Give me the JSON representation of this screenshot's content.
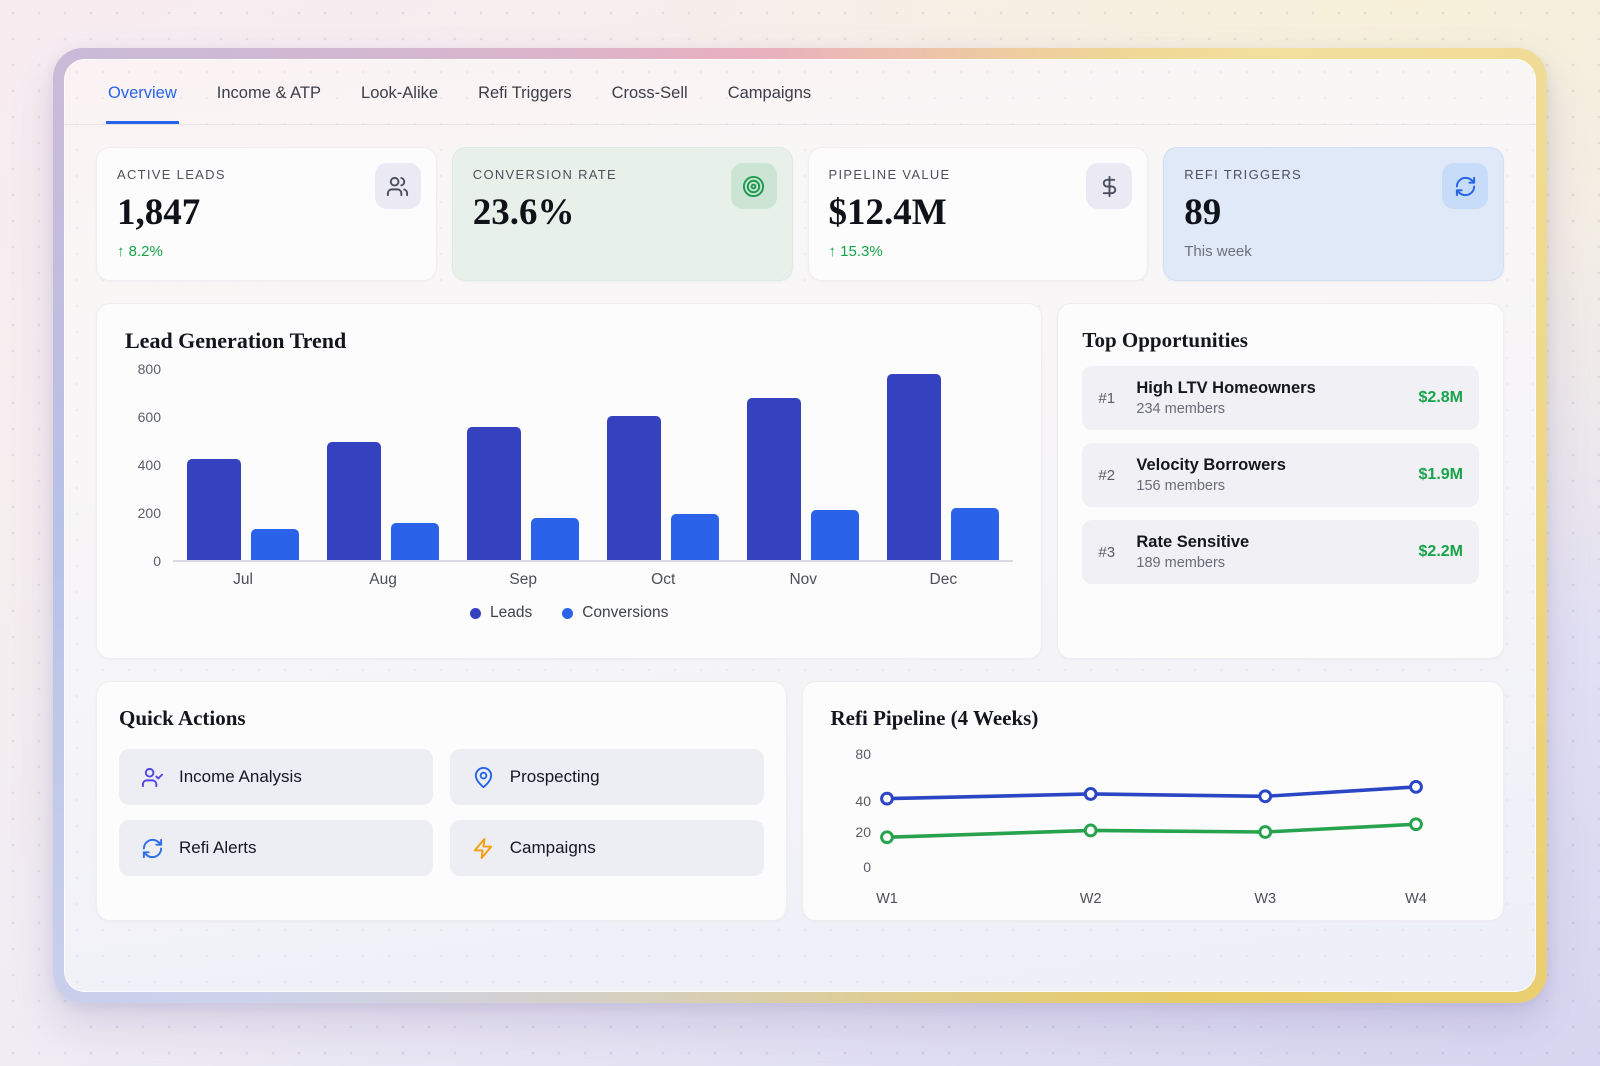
{
  "colors": {
    "accent_blue": "#2563eb",
    "leads_bar": "#3542c0",
    "conversions_bar": "#2a62ea",
    "positive_green": "#17a34a",
    "line_blue": "#2b46c4",
    "line_green": "#28a34d",
    "zap_orange": "#f59e0b",
    "indigo_icon": "#4f46e5"
  },
  "tabs": {
    "items": [
      {
        "label": "Overview",
        "active": true
      },
      {
        "label": "Income & ATP",
        "active": false
      },
      {
        "label": "Look-Alike",
        "active": false
      },
      {
        "label": "Refi Triggers",
        "active": false
      },
      {
        "label": "Cross-Sell",
        "active": false
      },
      {
        "label": "Campaigns",
        "active": false
      }
    ]
  },
  "stats": [
    {
      "label": "ACTIVE LEADS",
      "value": "1,847",
      "delta": "↑ 8.2%",
      "icon": "users-icon",
      "variant": "plain"
    },
    {
      "label": "CONVERSION RATE",
      "value": "23.6%",
      "icon": "target-icon",
      "variant": "green"
    },
    {
      "label": "PIPELINE VALUE",
      "value": "$12.4M",
      "delta": "↑ 15.3%",
      "icon": "dollar-icon",
      "variant": "plain"
    },
    {
      "label": "REFI TRIGGERS",
      "value": "89",
      "note": "This week",
      "icon": "refresh-icon",
      "variant": "blue"
    }
  ],
  "lead_chart": {
    "title": "Lead Generation Trend"
  },
  "opportunities": {
    "title": "Top Opportunities",
    "items": [
      {
        "rank": "#1",
        "name": "High LTV Homeowners",
        "members": "234 members",
        "value": "$2.8M"
      },
      {
        "rank": "#2",
        "name": "Velocity Borrowers",
        "members": "156 members",
        "value": "$1.9M"
      },
      {
        "rank": "#3",
        "name": "Rate Sensitive",
        "members": "189 members",
        "value": "$2.2M"
      }
    ]
  },
  "quick_actions": {
    "title": "Quick Actions",
    "items": [
      {
        "label": "Income Analysis",
        "icon": "user-check-icon",
        "color": "#4f46e5"
      },
      {
        "label": "Prospecting",
        "icon": "map-pin-icon",
        "color": "#2563eb"
      },
      {
        "label": "Refi Alerts",
        "icon": "refresh-icon",
        "color": "#2f6fe4"
      },
      {
        "label": "Campaigns",
        "icon": "zap-icon",
        "color": "#f59e0b"
      }
    ]
  },
  "refi_chart": {
    "title": "Refi Pipeline (4 Weeks)"
  },
  "chart_data": [
    {
      "type": "bar",
      "title": "Lead Generation Trend",
      "categories": [
        "Jul",
        "Aug",
        "Sep",
        "Oct",
        "Nov",
        "Dec"
      ],
      "series": [
        {
          "name": "Leads",
          "color": "#3542c0",
          "values": [
            420,
            490,
            555,
            600,
            675,
            775
          ]
        },
        {
          "name": "Conversions",
          "color": "#2a62ea",
          "values": [
            130,
            155,
            175,
            190,
            210,
            215
          ]
        }
      ],
      "yticks": [
        800,
        600,
        400,
        200,
        0
      ],
      "ylim": [
        0,
        800
      ],
      "xlabel": "",
      "ylabel": "",
      "grid": false,
      "legend_position": "bottom"
    },
    {
      "type": "line",
      "title": "Refi Pipeline (4 Weeks)",
      "x": [
        "W1",
        "W2",
        "W3",
        "W4"
      ],
      "series": [
        {
          "name": "refi-upper",
          "color": "#2b46c4",
          "values": [
            42,
            46,
            44,
            52
          ]
        },
        {
          "name": "refi-lower",
          "color": "#28a34d",
          "values": [
            17,
            21,
            20,
            25
          ]
        }
      ],
      "yticks": [
        80,
        40,
        20,
        0
      ],
      "ylim": [
        0,
        80
      ],
      "xlabel": "",
      "ylabel": "",
      "grid": false,
      "legend_position": "none"
    }
  ]
}
